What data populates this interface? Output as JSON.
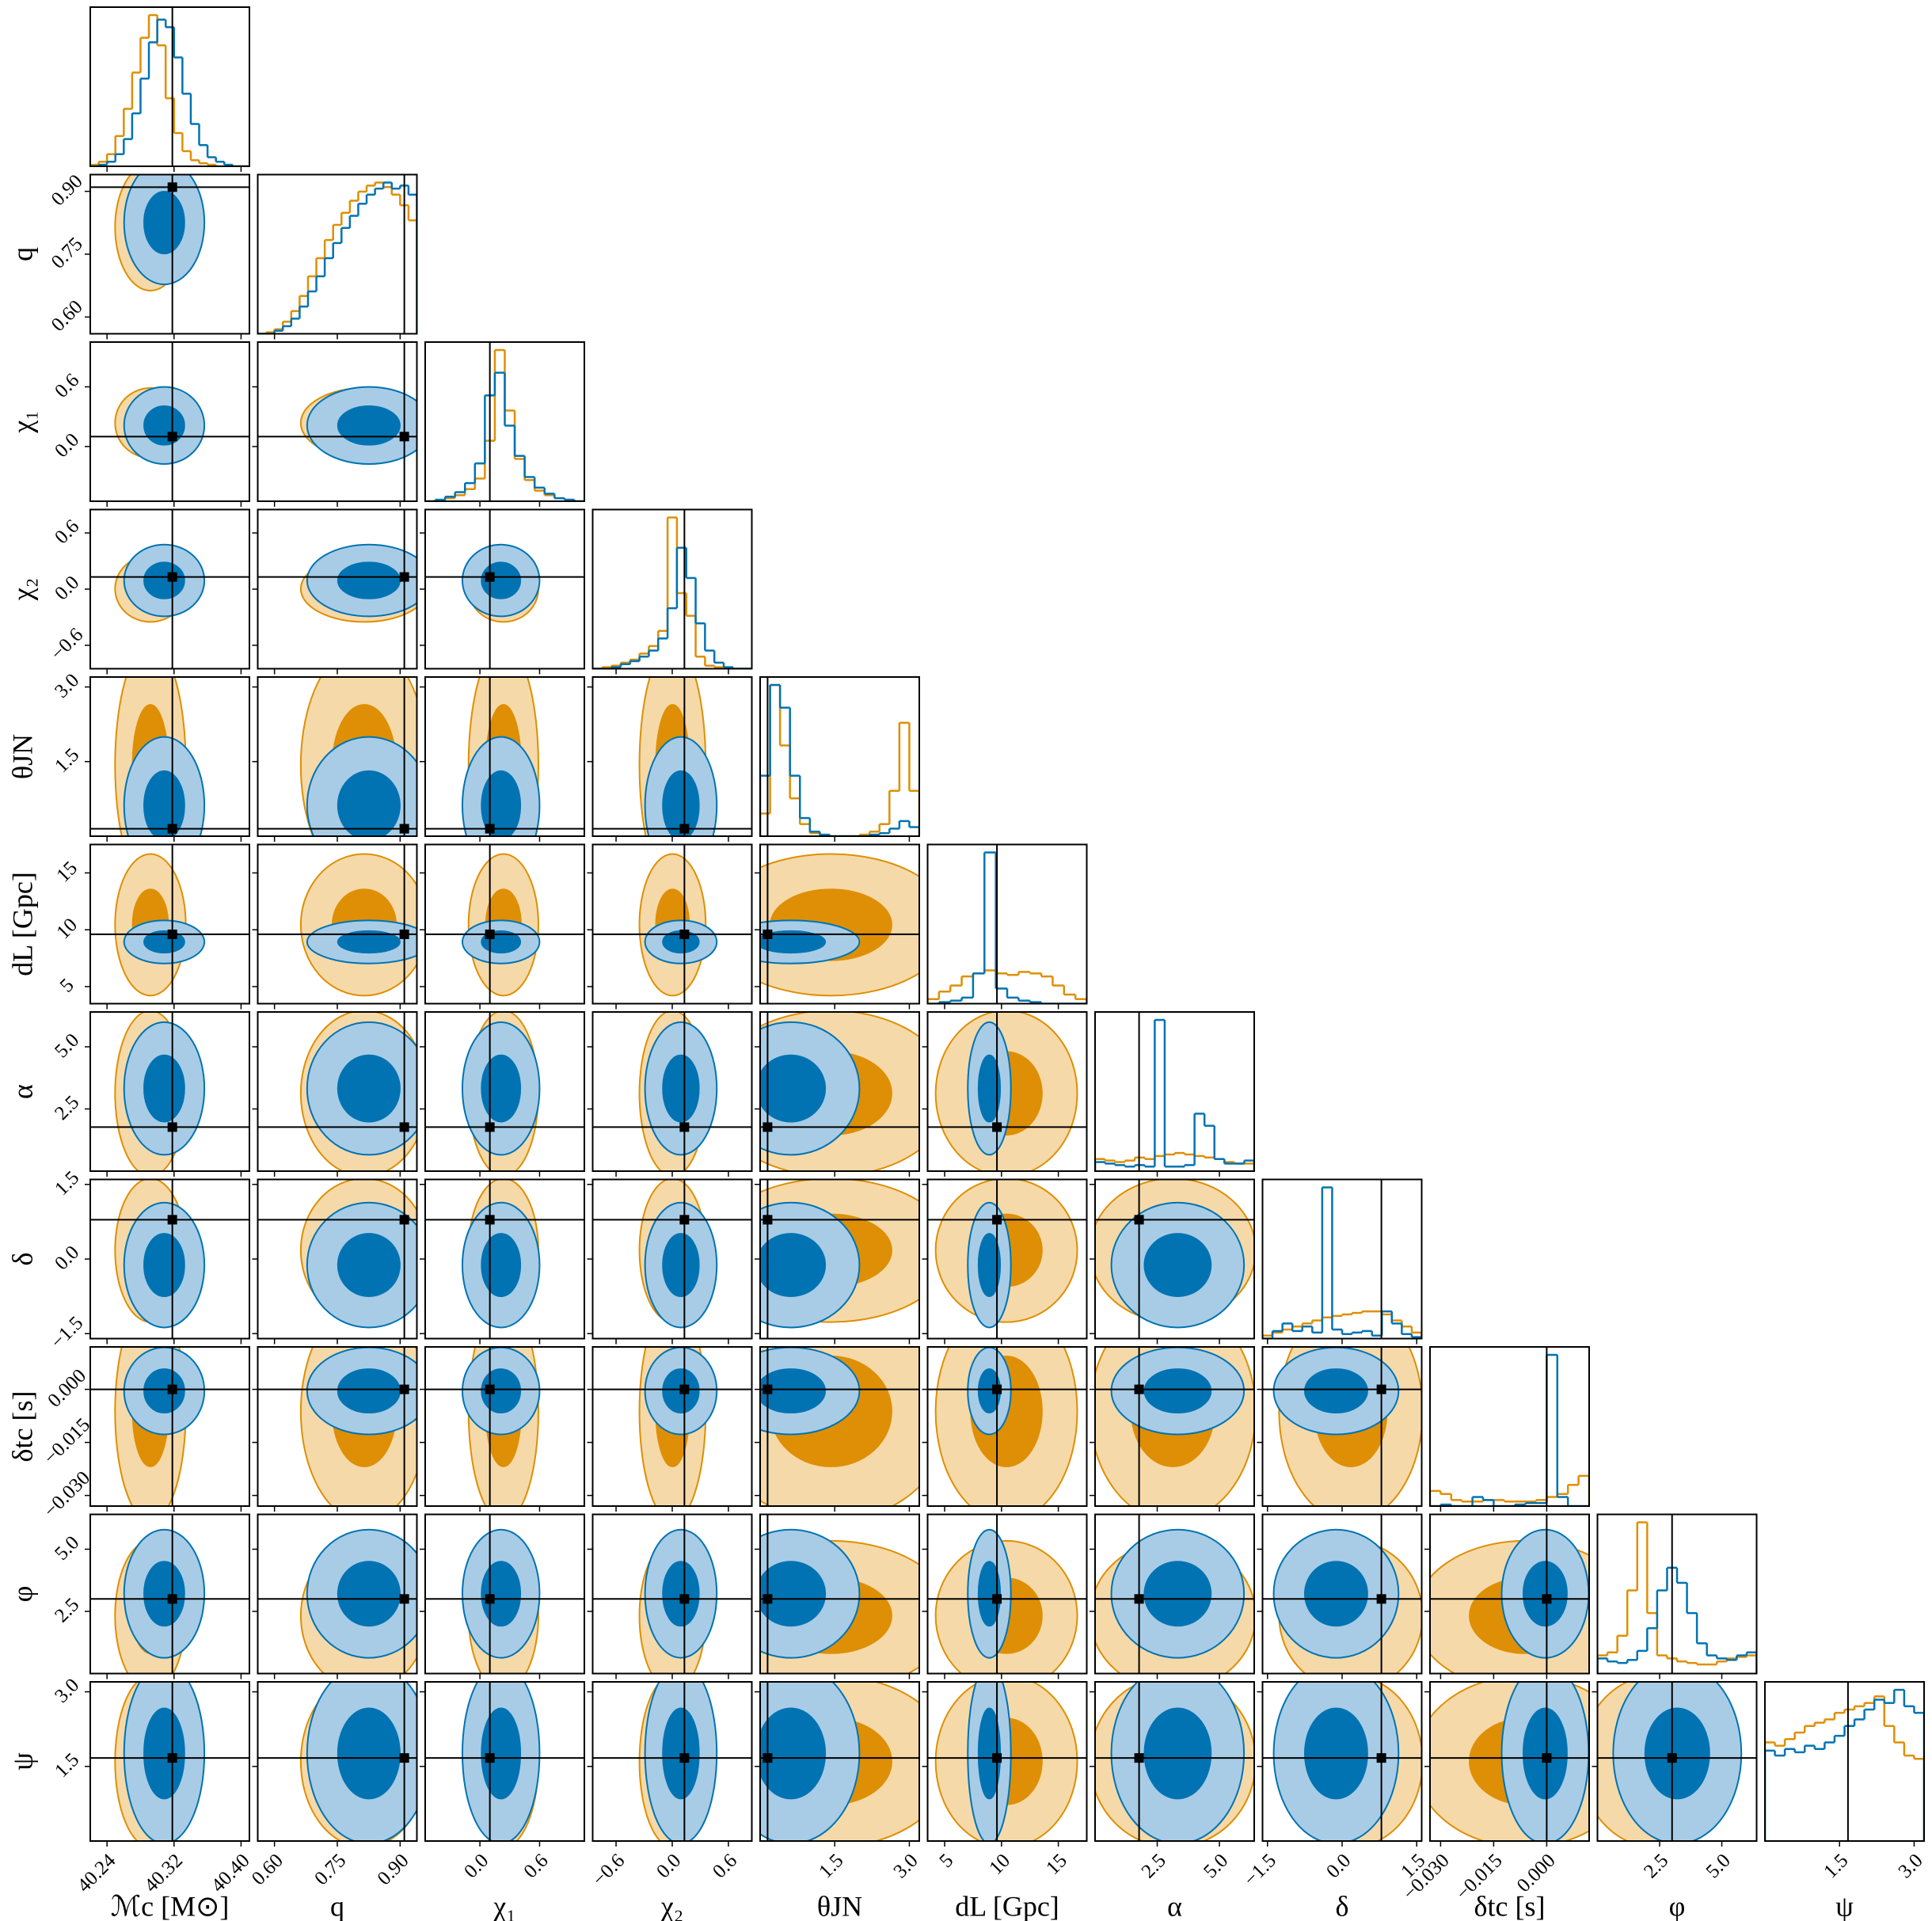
{
  "chart_data": {
    "type": "corner",
    "params": [
      {
        "label": "ℳc [M⊙]",
        "xlim": [
          40.22,
          40.41
        ],
        "ticks": [
          40.24,
          40.32,
          {
            "value": 40.4,
            "label": "40.40"
          }
        ],
        "truth": 40.318,
        "bins": [
          40.22,
          40.23,
          40.24,
          40.25,
          40.26,
          40.27,
          40.28,
          40.29,
          40.3,
          40.31,
          40.32,
          40.33,
          40.34,
          40.35,
          40.36,
          40.37,
          40.38,
          40.39,
          40.4,
          40.41
        ],
        "series": [
          {
            "color": "#de8f05",
            "values": [
              1,
              3,
              8,
              20,
              38,
              62,
              85,
              100,
              80,
              45,
              22,
              10,
              4,
              2,
              1,
              0,
              0,
              0,
              0
            ]
          },
          {
            "color": "#0173b2",
            "values": [
              0,
              1,
              3,
              8,
              18,
              35,
              58,
              82,
              97,
              92,
              72,
              48,
              28,
              14,
              6,
              3,
              1,
              0,
              0
            ]
          }
        ]
      },
      {
        "label": "q",
        "xlim": [
          0.56,
          0.94
        ],
        "ticks": [
          {
            "value": 0.6,
            "label": "0.60"
          },
          0.75,
          {
            "value": 0.9,
            "label": "0.90"
          }
        ],
        "truth": 0.91,
        "bins": [
          0.56,
          0.58,
          0.6,
          0.62,
          0.64,
          0.66,
          0.68,
          0.7,
          0.72,
          0.74,
          0.76,
          0.78,
          0.8,
          0.82,
          0.84,
          0.86,
          0.88,
          0.9,
          0.92,
          0.94
        ],
        "series": [
          {
            "color": "#de8f05",
            "values": [
              0,
              1,
              3,
              8,
              15,
              25,
              38,
              50,
              62,
              72,
              80,
              88,
              94,
              98,
              100,
              97,
              92,
              85,
              75
            ]
          },
          {
            "color": "#0173b2",
            "values": [
              0,
              0,
              2,
              5,
              10,
              18,
              28,
              38,
              50,
              60,
              70,
              78,
              86,
              92,
              96,
              100,
              96,
              98,
              92
            ]
          }
        ]
      },
      {
        "label": "χ₁",
        "xlim": [
          -0.55,
          1.05
        ],
        "ticks": [
          {
            "value": 0,
            "label": "0.0"
          },
          0.6
        ],
        "truth": 0.1,
        "bins": [
          -0.55,
          -0.45,
          -0.35,
          -0.25,
          -0.15,
          -0.05,
          0.05,
          0.15,
          0.25,
          0.35,
          0.45,
          0.55,
          0.65,
          0.75,
          0.85,
          0.95,
          1.05
        ],
        "series": [
          {
            "color": "#de8f05",
            "values": [
              0,
              0,
              2,
              4,
              8,
              15,
              40,
              100,
              60,
              28,
              14,
              7,
              4,
              2,
              1,
              0
            ]
          },
          {
            "color": "#0173b2",
            "values": [
              0,
              1,
              3,
              6,
              12,
              25,
              70,
              85,
              50,
              30,
              16,
              9,
              5,
              2,
              1,
              0
            ]
          }
        ]
      },
      {
        "label": "χ₂",
        "xlim": [
          -0.85,
          0.85
        ],
        "ticks": [
          {
            "value": -0.6,
            "label": "−0.6"
          },
          {
            "value": 0,
            "label": "0.0"
          },
          0.6
        ],
        "truth": 0.13,
        "bins": [
          -0.85,
          -0.75,
          -0.65,
          -0.55,
          -0.45,
          -0.35,
          -0.25,
          -0.15,
          -0.05,
          0.05,
          0.15,
          0.25,
          0.35,
          0.45,
          0.55,
          0.65,
          0.75,
          0.85
        ],
        "series": [
          {
            "color": "#de8f05",
            "values": [
              0,
              1,
              2,
              4,
              6,
              10,
              15,
              25,
              100,
              50,
              35,
              8,
              2,
              1,
              0,
              0,
              0
            ]
          },
          {
            "color": "#0173b2",
            "values": [
              0,
              0,
              1,
              3,
              5,
              8,
              12,
              20,
              40,
              80,
              60,
              30,
              12,
              4,
              1,
              0,
              0
            ]
          }
        ]
      },
      {
        "label": "θJN",
        "xlim": [
          0,
          3.2
        ],
        "ticks": [
          1.5,
          {
            "value": 3,
            "label": "3.0"
          }
        ],
        "truth": 0.15,
        "bins": [
          0,
          0.2,
          0.4,
          0.6,
          0.8,
          1,
          1.2,
          1.4,
          1.6,
          1.8,
          2,
          2.2,
          2.4,
          2.6,
          2.8,
          3,
          3.2
        ],
        "series": [
          {
            "color": "#de8f05",
            "values": [
              15,
              100,
              60,
              25,
              8,
              2,
              0,
              0,
              0,
              0,
              1,
              3,
              8,
              30,
              75,
              30
            ]
          },
          {
            "color": "#0173b2",
            "values": [
              40,
              100,
              85,
              40,
              12,
              3,
              1,
              0,
              0,
              0,
              0,
              1,
              2,
              5,
              10,
              6
            ]
          }
        ]
      },
      {
        "label": "dL [Gpc]",
        "xlim": [
          3.5,
          17.5
        ],
        "ticks": [
          5,
          10,
          15
        ],
        "truth": 9.6,
        "bins": [
          3.5,
          4.5,
          5.5,
          6.5,
          7.5,
          8.5,
          9.5,
          10.5,
          11.5,
          12.5,
          13.5,
          14.5,
          15.5,
          16.5,
          17.5
        ],
        "series": [
          {
            "color": "#de8f05",
            "values": [
              3,
              8,
              12,
              18,
              20,
              22,
              20,
              19,
              21,
              20,
              18,
              12,
              6,
              3
            ]
          },
          {
            "color": "#0173b2",
            "values": [
              0,
              1,
              2,
              4,
              20,
              100,
              10,
              4,
              2,
              1,
              0,
              0,
              0,
              0
            ]
          }
        ]
      },
      {
        "label": "α",
        "xlim": [
          0,
          6.4
        ],
        "ticks": [
          2.5,
          {
            "value": 5,
            "label": "5.0"
          }
        ],
        "truth": 1.77,
        "bins": [
          0,
          0.4,
          0.8,
          1.2,
          1.6,
          2,
          2.4,
          2.8,
          3.2,
          3.6,
          4,
          4.4,
          4.8,
          5.2,
          5.6,
          6,
          6.4
        ],
        "series": [
          {
            "color": "#de8f05",
            "values": [
              8,
              7,
              6,
              7,
              9,
              8,
              10,
              11,
              12,
              11,
              10,
              9,
              8,
              6,
              5,
              5
            ]
          },
          {
            "color": "#0173b2",
            "values": [
              6,
              5,
              4,
              3,
              4,
              3,
              100,
              3,
              3,
              4,
              38,
              30,
              8,
              5,
              5,
              7
            ]
          }
        ]
      },
      {
        "label": "δ",
        "xlim": [
          -1.6,
          1.6
        ],
        "ticks": [
          {
            "value": -1.5,
            "label": "−1.5"
          },
          {
            "value": 0,
            "label": "0.0"
          },
          1.5
        ],
        "truth": 0.79,
        "bins": [
          -1.6,
          -1.4,
          -1.2,
          -1,
          -0.8,
          -0.6,
          -0.4,
          -0.2,
          0,
          0.2,
          0.4,
          0.6,
          0.8,
          1,
          1.2,
          1.4,
          1.6
        ],
        "series": [
          {
            "color": "#de8f05",
            "values": [
              2,
              4,
              6,
              8,
              10,
              12,
              14,
              15,
              16,
              17,
              18,
              18,
              16,
              12,
              8,
              4
            ]
          },
          {
            "color": "#0173b2",
            "values": [
              0,
              5,
              10,
              5,
              8,
              4,
              100,
              6,
              3,
              4,
              5,
              2,
              18,
              10,
              3,
              1
            ]
          }
        ]
      },
      {
        "label": "δtc [s]",
        "xlim": [
          -0.033,
          0.012
        ],
        "ticks": [
          {
            "value": -0.03,
            "label": "−0.030"
          },
          {
            "value": -0.015,
            "label": "−0.015"
          },
          {
            "value": 0,
            "label": "0.000"
          }
        ],
        "truth": 0,
        "bins": [
          -0.033,
          -0.03,
          -0.027,
          -0.024,
          -0.021,
          -0.018,
          -0.015,
          -0.012,
          -0.009,
          -0.006,
          -0.003,
          0,
          0.003,
          0.006,
          0.009,
          0.012
        ],
        "series": [
          {
            "color": "#de8f05",
            "values": [
              10,
              8,
              4,
              3,
              3,
              4,
              4,
              3,
              3,
              3,
              4,
              6,
              8,
              14,
              20
            ]
          },
          {
            "color": "#0173b2",
            "values": [
              0,
              1,
              0,
              0,
              6,
              4,
              0,
              0,
              1,
              2,
              2,
              100,
              6,
              0,
              0
            ]
          }
        ]
      },
      {
        "label": "φ",
        "xlim": [
          0,
          6.4
        ],
        "ticks": [
          2.5,
          {
            "value": 5,
            "label": "5.0"
          }
        ],
        "truth": 3,
        "bins": [
          0,
          0.4,
          0.8,
          1.2,
          1.6,
          2,
          2.4,
          2.8,
          3.2,
          3.6,
          4,
          4.4,
          4.8,
          5.2,
          5.6,
          6,
          6.4
        ],
        "series": [
          {
            "color": "#de8f05",
            "values": [
              12,
              14,
              25,
              55,
              100,
              40,
              12,
              10,
              8,
              7,
              6,
              6,
              8,
              10,
              11,
              12
            ]
          },
          {
            "color": "#0173b2",
            "values": [
              10,
              8,
              7,
              9,
              15,
              30,
              55,
              70,
              60,
              40,
              20,
              12,
              10,
              9,
              12,
              14
            ]
          }
        ]
      },
      {
        "label": "ψ",
        "xlim": [
          0,
          3.2
        ],
        "ticks": [
          1.5,
          {
            "value": 3,
            "label": "3.0"
          }
        ],
        "truth": 1.67,
        "bins": [
          0,
          0.2,
          0.4,
          0.6,
          0.8,
          1,
          1.2,
          1.4,
          1.6,
          1.8,
          2,
          2.2,
          2.4,
          2.6,
          2.8,
          3,
          3.2
        ],
        "series": [
          {
            "color": "#de8f05",
            "values": [
              60,
              58,
              62,
              66,
              70,
              72,
              74,
              78,
              80,
              82,
              84,
              88,
              70,
              60,
              52,
              50
            ]
          },
          {
            "color": "#0173b2",
            "values": [
              55,
              52,
              56,
              54,
              58,
              56,
              60,
              64,
              70,
              74,
              80,
              86,
              84,
              92,
              82,
              78
            ]
          }
        ]
      }
    ]
  }
}
